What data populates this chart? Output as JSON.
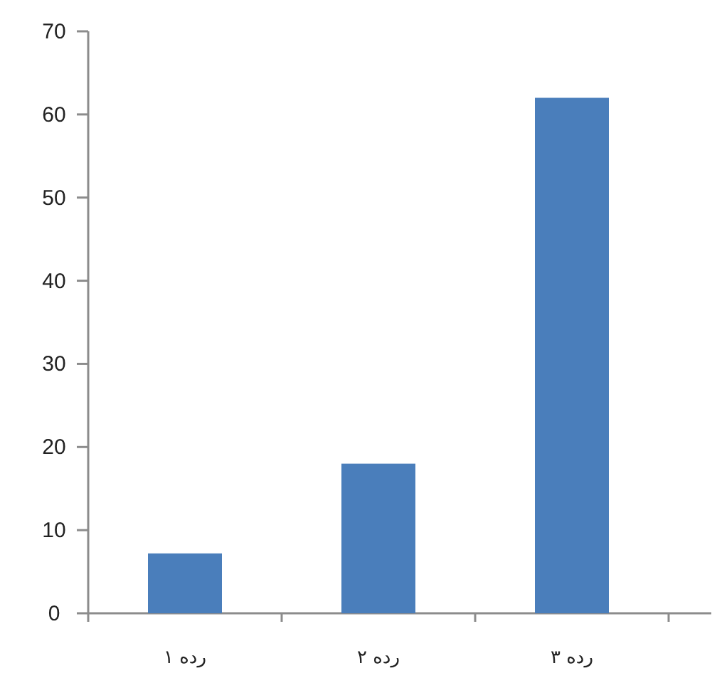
{
  "chart_data": {
    "type": "bar",
    "categories": [
      "رده ۱",
      "رده ۲",
      "رده ۳"
    ],
    "values": [
      7.2,
      18,
      62
    ],
    "color": "#4a7ebb",
    "ylim": [
      0,
      70
    ],
    "yticks": [
      0,
      10,
      20,
      30,
      40,
      50,
      60,
      70
    ]
  }
}
